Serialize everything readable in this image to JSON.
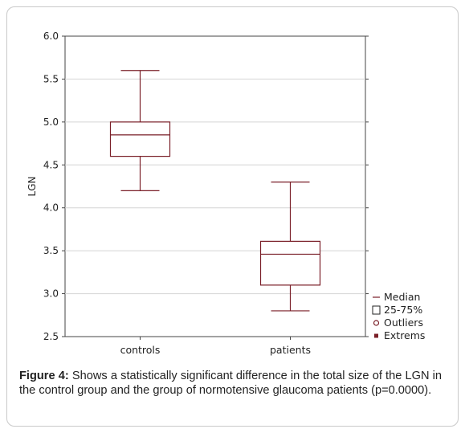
{
  "chart_data": {
    "type": "box",
    "ylabel": "LGN",
    "ylim": [
      2.5,
      6.0
    ],
    "yticks": [
      "6.0",
      "5.5",
      "5.0",
      "4.5",
      "4.0",
      "3.5",
      "3.0",
      "2.5"
    ],
    "ytick_values": [
      6.0,
      5.5,
      5.0,
      4.5,
      4.0,
      3.5,
      3.0,
      2.5
    ],
    "grid": true,
    "categories": [
      "controls",
      "patients"
    ],
    "boxes": [
      {
        "category": "controls",
        "min": 4.2,
        "q1": 4.6,
        "median": 4.85,
        "q3": 5.0,
        "max": 5.6
      },
      {
        "category": "patients",
        "min": 2.8,
        "q1": 3.1,
        "median": 3.46,
        "q3": 3.61,
        "max": 4.3
      }
    ],
    "legend": [
      "Median",
      "25-75%",
      "Outliers",
      "Extrems"
    ],
    "legend_position": "bottom-right",
    "color": "#7a1f28"
  },
  "caption": {
    "label": "Figure 4:",
    "text": "Shows a statistically significant difference in the total size of the LGN in the control group and the group of normotensive glaucoma patients (p=0.0000)."
  }
}
